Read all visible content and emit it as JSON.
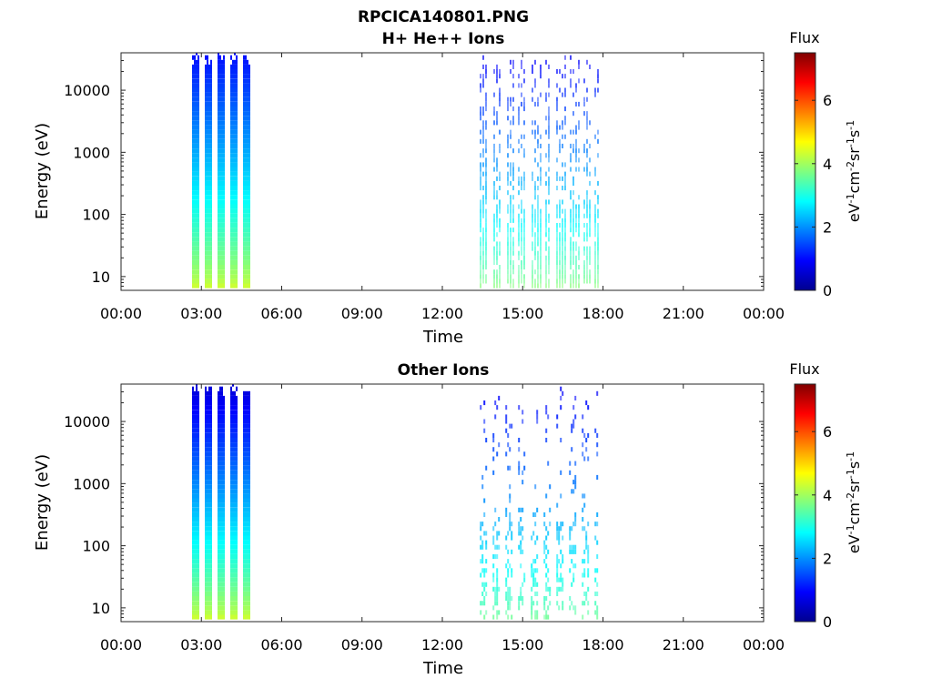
{
  "figure_title": "RPCICA140801.PNG",
  "chart_data": [
    {
      "type": "heatmap",
      "title": "H+ He++ Ions",
      "xlabel": "Time",
      "ylabel": "Energy (eV)",
      "x_tick_labels": [
        "00:00",
        "03:00",
        "06:00",
        "09:00",
        "12:00",
        "15:00",
        "18:00",
        "21:00",
        "00:00"
      ],
      "x_tick_hours": [
        0,
        3,
        6,
        9,
        12,
        15,
        18,
        21,
        24
      ],
      "xlim_hours": [
        0,
        24
      ],
      "y_scale": "log",
      "y_tick_labels": [
        "10",
        "100",
        "1000",
        "10000"
      ],
      "y_tick_values": [
        10,
        100,
        1000,
        10000
      ],
      "ylim": [
        6,
        40000
      ],
      "colorbar": {
        "label": "Flux",
        "unit_label": "eV-1cm-2sr-1s-1",
        "range": [
          0,
          7.5
        ],
        "tick_labels": [
          "0",
          "2",
          "4",
          "6"
        ],
        "tick_values": [
          0,
          2,
          4,
          6
        ],
        "colormap": "jet"
      },
      "data_intervals": [
        {
          "start_hour": 2.65,
          "end_hour": 4.85,
          "pattern": "vertical bursts",
          "flux_range": [
            1.0,
            4.3
          ],
          "emax_ev": 38000
        },
        {
          "start_hour": 13.4,
          "end_hour": 17.8,
          "pattern": "dense vertical bursts",
          "flux_range": [
            0.8,
            3.8
          ],
          "emax_ev": 35000
        }
      ]
    },
    {
      "type": "heatmap",
      "title": "Other Ions",
      "xlabel": "Time",
      "ylabel": "Energy (eV)",
      "x_tick_labels": [
        "00:00",
        "03:00",
        "06:00",
        "09:00",
        "12:00",
        "15:00",
        "18:00",
        "21:00",
        "00:00"
      ],
      "x_tick_hours": [
        0,
        3,
        6,
        9,
        12,
        15,
        18,
        21,
        24
      ],
      "xlim_hours": [
        0,
        24
      ],
      "y_scale": "log",
      "y_tick_labels": [
        "10",
        "100",
        "1000",
        "10000"
      ],
      "y_tick_values": [
        10,
        100,
        1000,
        10000
      ],
      "ylim": [
        6,
        40000
      ],
      "colorbar": {
        "label": "Flux",
        "unit_label": "eV-1cm-2sr-1s-1",
        "range": [
          0,
          7.5
        ],
        "tick_labels": [
          "0",
          "2",
          "4",
          "6"
        ],
        "tick_values": [
          0,
          2,
          4,
          6
        ],
        "colormap": "jet"
      },
      "data_intervals": [
        {
          "start_hour": 2.65,
          "end_hour": 4.85,
          "pattern": "vertical bursts",
          "flux_range": [
            0.6,
            4.3
          ],
          "emax_ev": 38000
        },
        {
          "start_hour": 13.4,
          "end_hour": 17.8,
          "pattern": "sparse speckles",
          "flux_range": [
            0.8,
            3.6
          ],
          "emax_ev": 35000
        }
      ]
    }
  ]
}
